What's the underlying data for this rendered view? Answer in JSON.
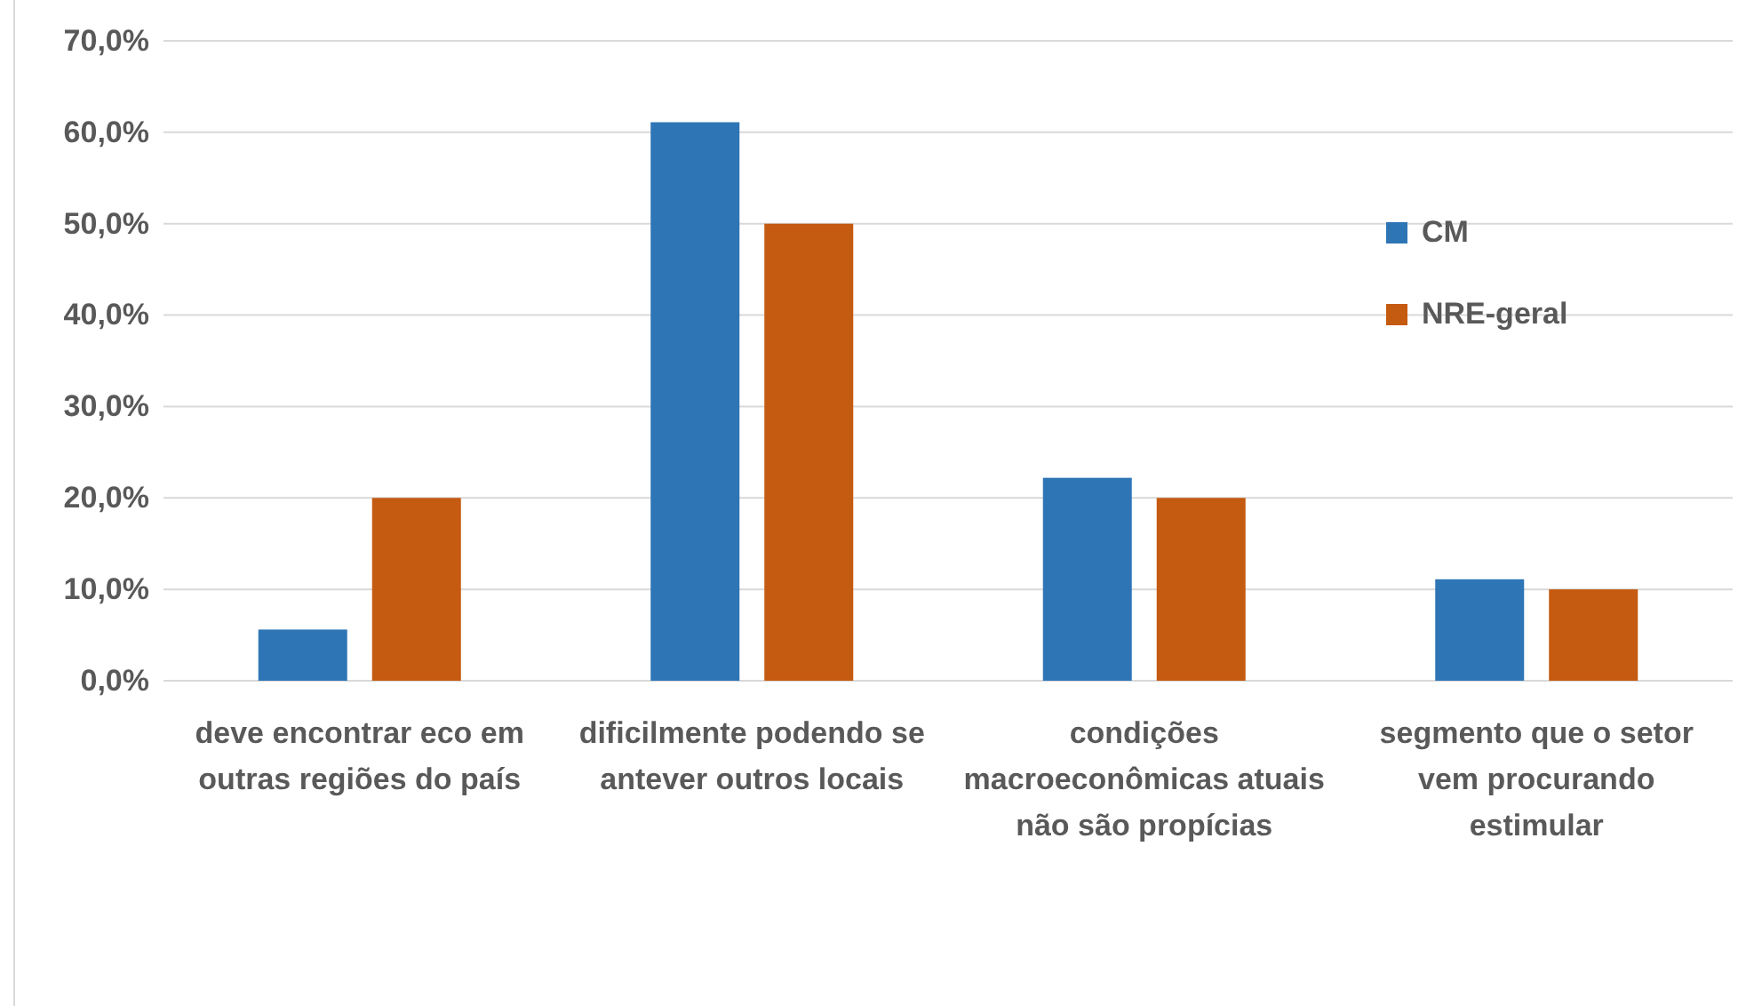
{
  "chart_data": {
    "type": "bar",
    "categories": [
      "deve encontrar eco em outras regiões do país",
      "dificilmente podendo se antever outros locais",
      "condições macroeconômicas atuais não são propícias",
      "segmento que o setor vem procurando estimular"
    ],
    "series": [
      {
        "name": "CM",
        "color": "#2e75b6",
        "values": [
          5.6,
          61.1,
          22.2,
          11.1
        ]
      },
      {
        "name": "NRE-geral",
        "color": "#c55a11",
        "values": [
          20,
          50,
          20,
          10
        ]
      }
    ],
    "ylim": [
      0,
      70
    ],
    "yticks": [
      {
        "value": 0,
        "label": "0,0%"
      },
      {
        "value": 10,
        "label": "10,0%"
      },
      {
        "value": 20,
        "label": "20,0%"
      },
      {
        "value": 30,
        "label": "30,0%"
      },
      {
        "value": 40,
        "label": "40,0%"
      },
      {
        "value": 50,
        "label": "50,0%"
      },
      {
        "value": 60,
        "label": "60,0%"
      },
      {
        "value": 70,
        "label": "70,0%"
      }
    ],
    "grid": "y",
    "legend": "right"
  }
}
